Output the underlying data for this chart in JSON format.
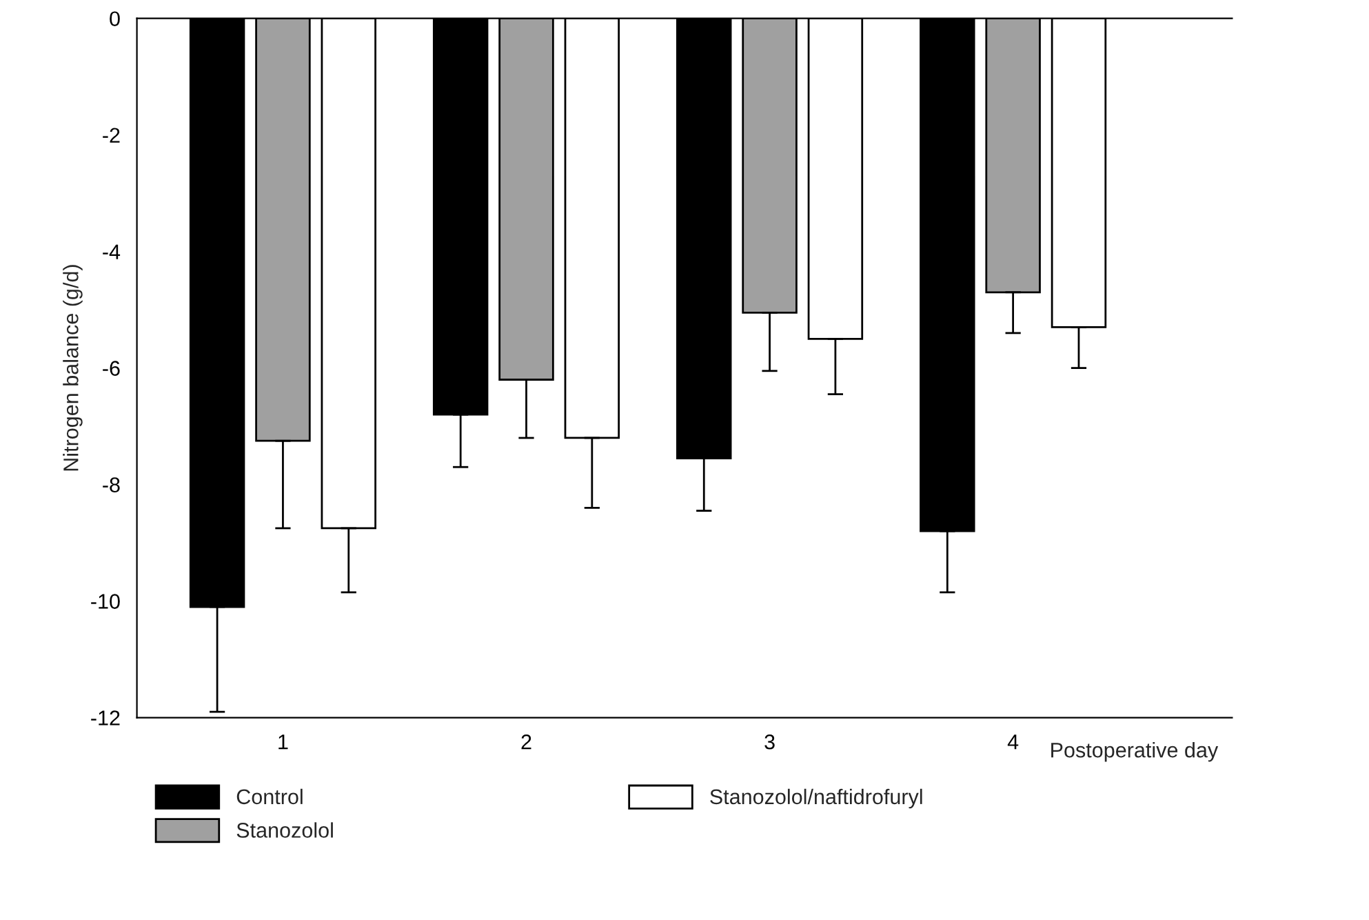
{
  "chart_data": {
    "type": "bar",
    "ylabel": "Nitrogen balance (g/d)",
    "xlabel": "Postoperative day",
    "categories": [
      "1",
      "2",
      "3",
      "4"
    ],
    "series": [
      {
        "name": "Control",
        "color": "#000000",
        "values": [
          -10.1,
          -6.8,
          -7.55,
          -8.8
        ],
        "errors": [
          [
            -11.9,
            -10.1
          ],
          [
            -7.7,
            -6.8
          ],
          [
            -8.45,
            -7.55
          ],
          [
            -9.85,
            -8.8
          ]
        ]
      },
      {
        "name": "Stanozolol",
        "color": "#a0a0a0",
        "values": [
          -7.25,
          -6.2,
          -5.05,
          -4.7
        ],
        "errors": [
          [
            -8.75,
            -7.25
          ],
          [
            -7.2,
            -6.2
          ],
          [
            -6.05,
            -5.05
          ],
          [
            -5.4,
            -4.7
          ]
        ]
      },
      {
        "name": "Stanozolol/naftidrofuryl",
        "color": "#ffffff",
        "values": [
          -8.75,
          -7.2,
          -5.5,
          -5.3
        ],
        "errors": [
          [
            -9.85,
            -8.75
          ],
          [
            -8.4,
            -7.2
          ],
          [
            -6.45,
            -5.5
          ],
          [
            -6.0,
            -5.3
          ]
        ]
      }
    ],
    "ylim": [
      -12,
      0
    ],
    "yticks": [
      0,
      -2,
      -4,
      -6,
      -8,
      -10,
      -12
    ],
    "grid": false,
    "legend": "bottom"
  }
}
